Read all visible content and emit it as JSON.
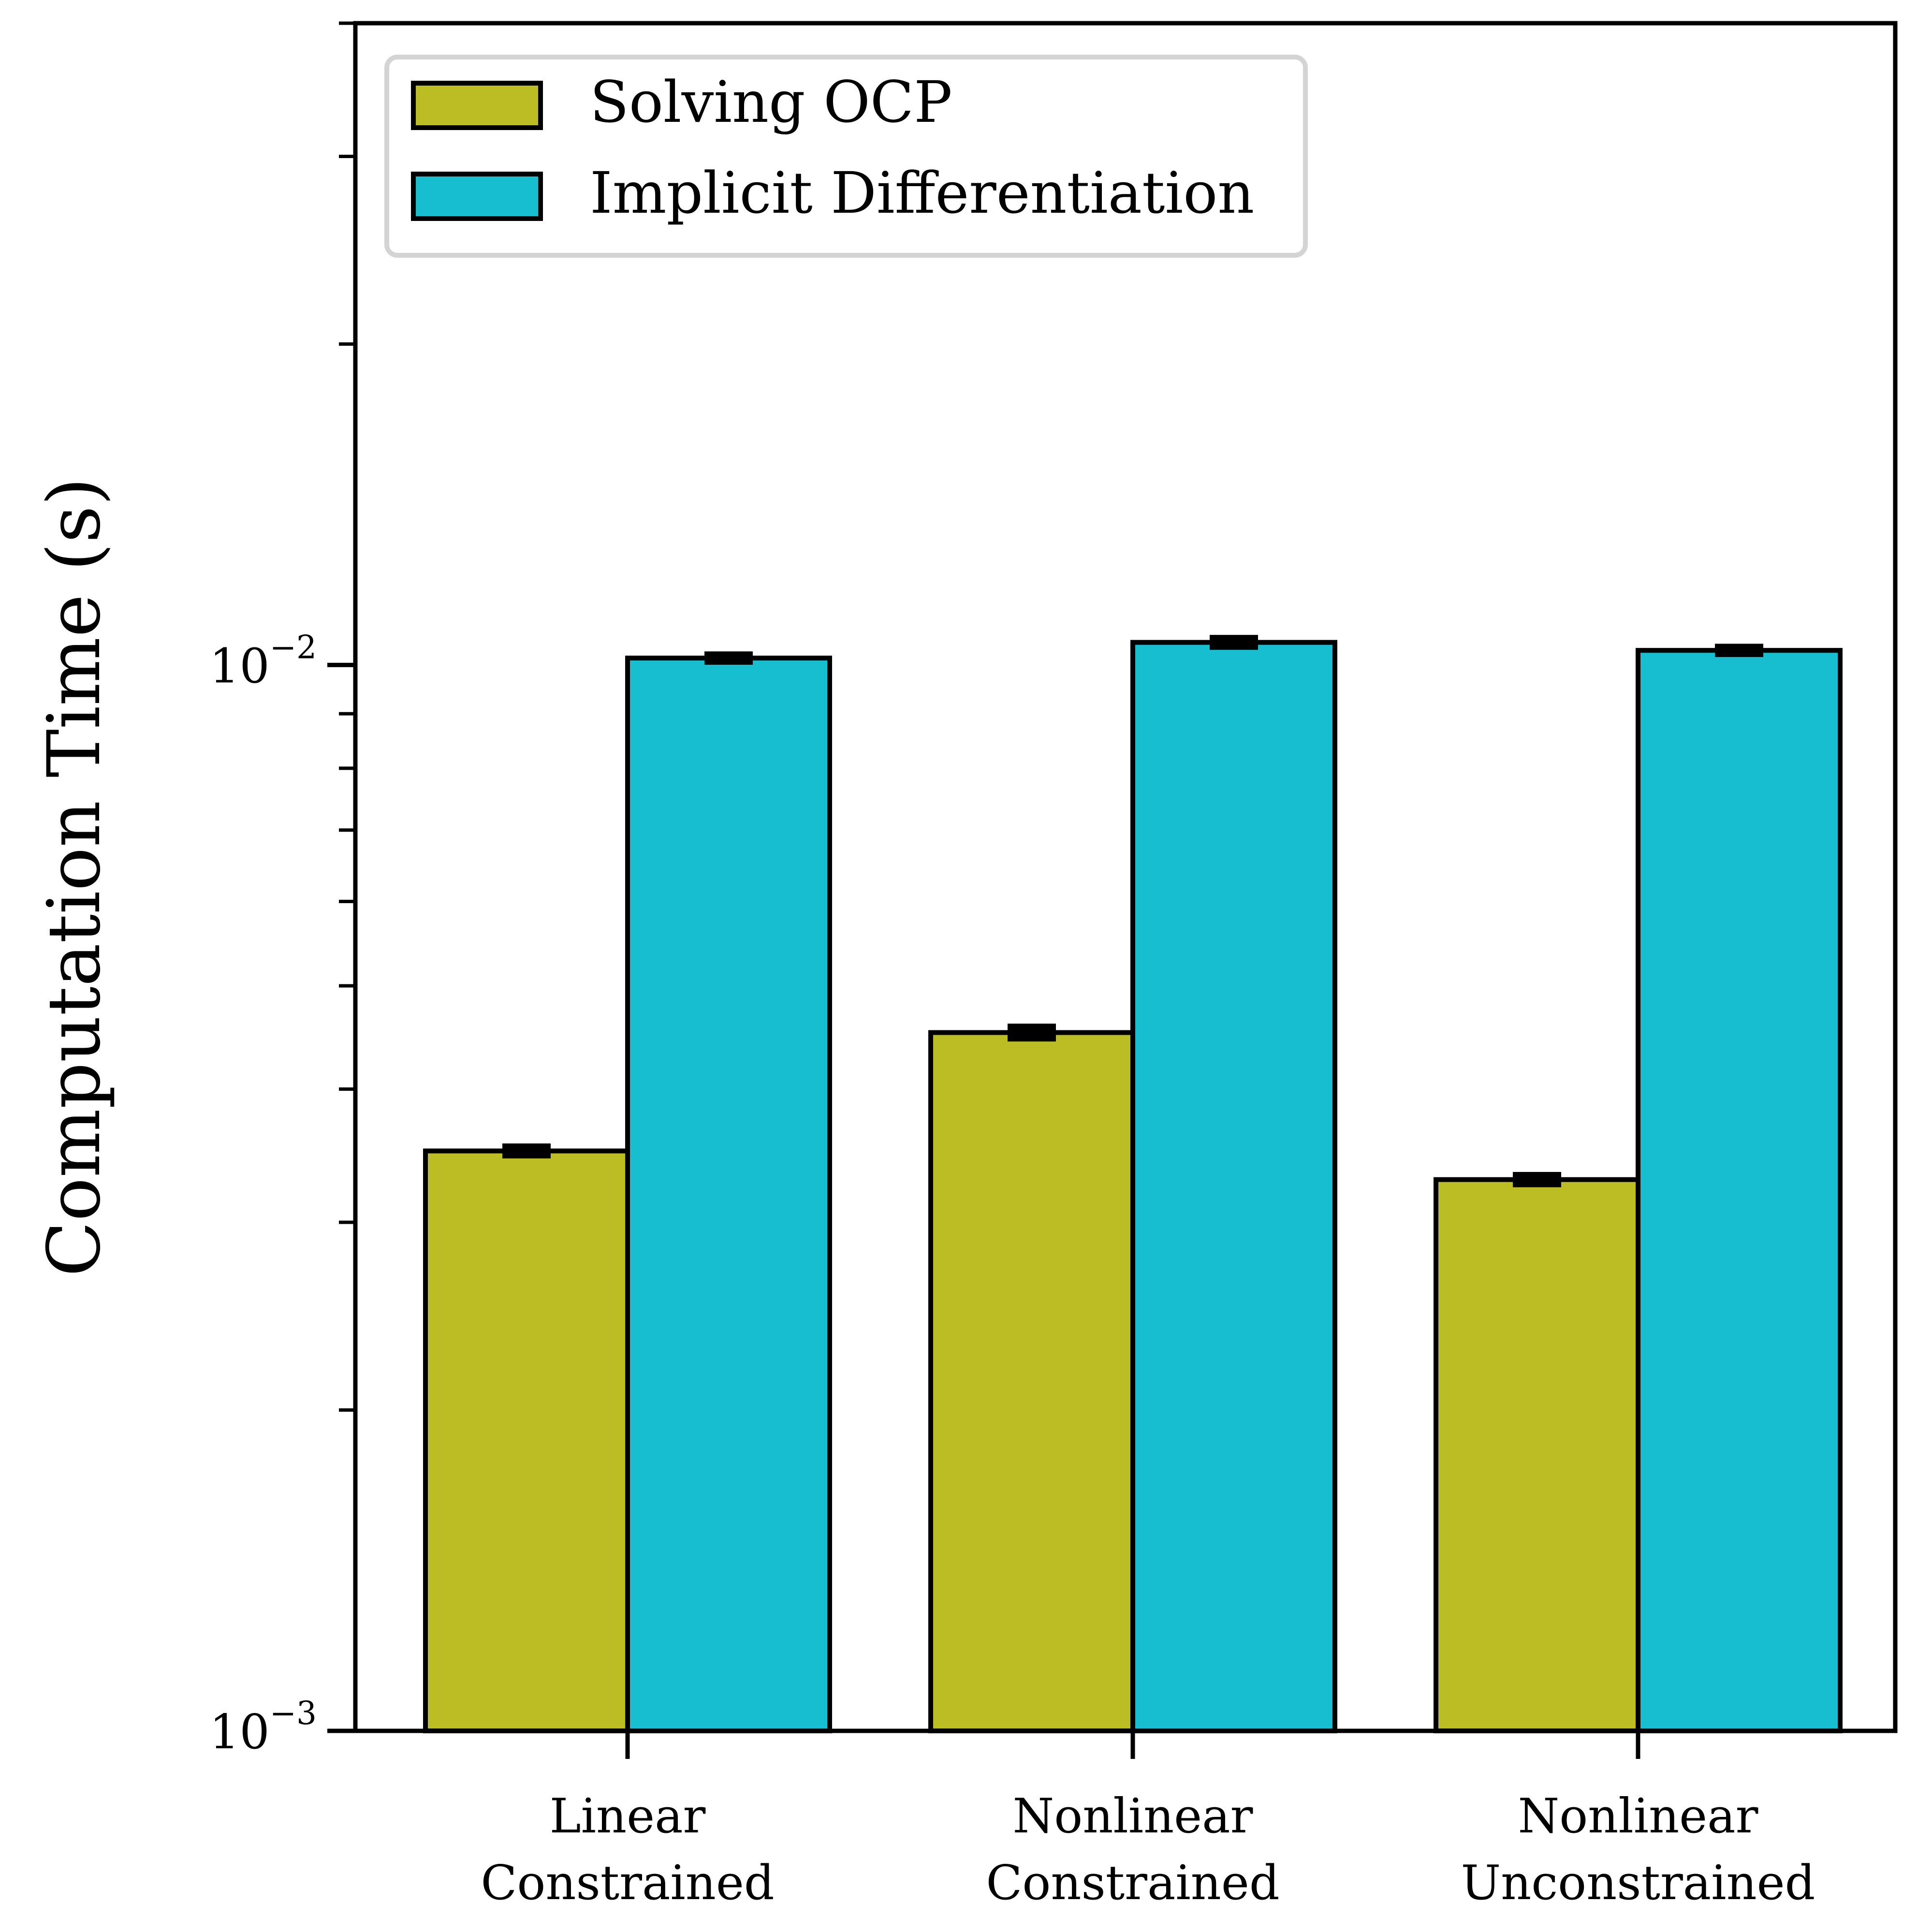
{
  "chart_data": {
    "type": "bar",
    "categories": [
      [
        "Linear",
        "Constrained"
      ],
      [
        "Nonlinear",
        "Constrained"
      ],
      [
        "Nonlinear",
        "Unconstrained"
      ]
    ],
    "series": [
      {
        "name": "Solving OCP",
        "color": "#bcbd22",
        "values": [
          0.0035,
          0.00452,
          0.00329
        ],
        "errors": [
          2e-05,
          4e-05,
          2e-05
        ]
      },
      {
        "name": "Implicit Differentiation",
        "color": "#17becf",
        "values": [
          0.01015,
          0.0105,
          0.01032
        ],
        "errors": [
          4e-05,
          6e-05,
          4e-05
        ]
      }
    ],
    "ylabel": "Computation Time (s)",
    "xlabel": "",
    "yscale": "log",
    "ylim": [
      0.001,
      0.04
    ],
    "yticks": [
      {
        "base": "10",
        "exp": "−3",
        "value": 0.001
      },
      {
        "base": "10",
        "exp": "−2",
        "value": 0.01
      }
    ],
    "legend_position": "upper-left",
    "grid": false
  }
}
